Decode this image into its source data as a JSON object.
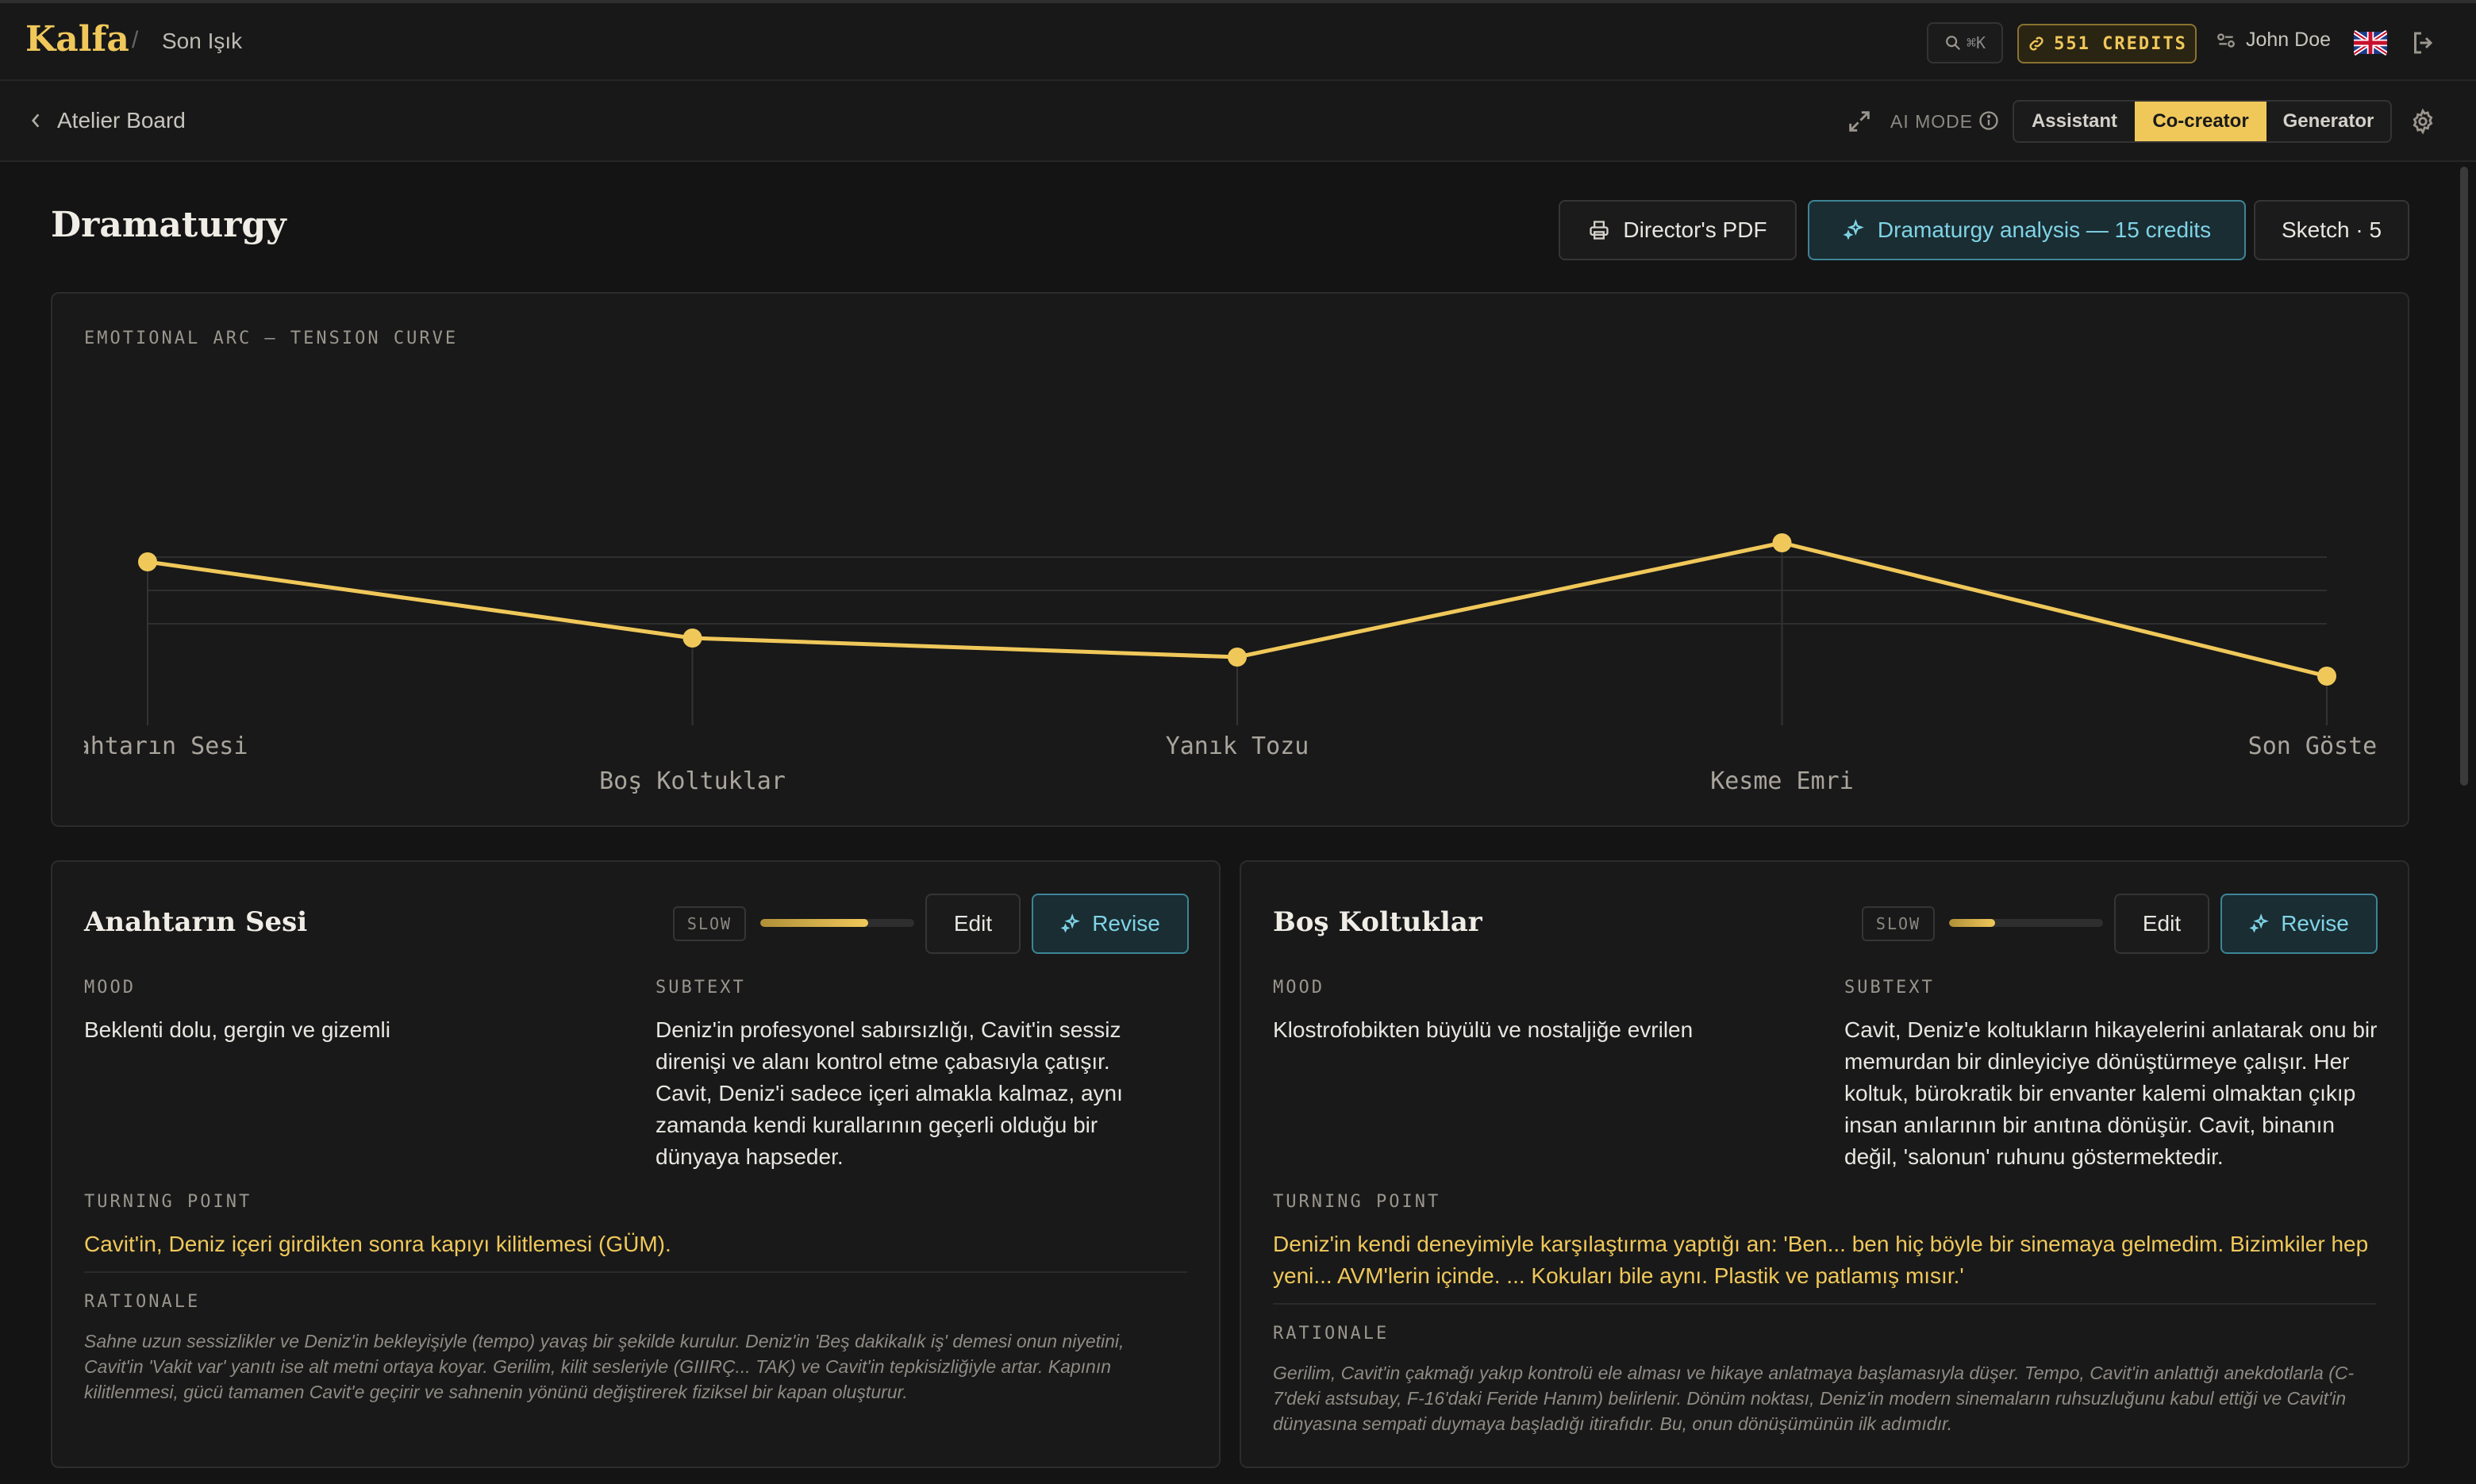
{
  "app": {
    "brand": "Kalfa",
    "separator": "/",
    "project": "Son Işık"
  },
  "topbar": {
    "search_shortcut": "⌘K",
    "credits": "551 CREDITS",
    "user_name": "John Doe",
    "language_flag": "uk-flag-icon"
  },
  "subbar": {
    "back_label": "Atelier Board",
    "ai_mode_label": "AI MODE",
    "modes": [
      "Assistant",
      "Co-creator",
      "Generator"
    ],
    "active_mode": "Co-creator"
  },
  "page": {
    "title": "Dramaturgy",
    "pdf_button": "Director's PDF",
    "analysis_button": "Dramaturgy analysis — 15 credits",
    "sketch_button": "Sketch · 5"
  },
  "colors": {
    "accent": "#f0c85a",
    "teal": "#7fd4e6",
    "background": "#141414"
  },
  "chart_data": {
    "type": "line",
    "title": "EMOTIONAL ARC — TENSION CURVE",
    "categories": [
      "Anahtarın Sesi",
      "Boş Koltuklar",
      "Yanık Tozu",
      "Kesme Emri",
      "Son Gösteri"
    ],
    "series": [
      {
        "values": [
          6.9,
          5.3,
          4.9,
          7.3,
          4.5
        ]
      }
    ],
    "ylim": [
      0,
      10
    ],
    "grid": true,
    "xlabel": "",
    "ylabel": ""
  },
  "scenes": [
    {
      "title": "Anahtarın Sesi",
      "pace": "SLOW",
      "pace_level": 0.7,
      "edit_label": "Edit",
      "revise_label": "Revise",
      "mood_label": "MOOD",
      "mood": "Beklenti dolu, gergin ve gizemli",
      "subtext_label": "SUBTEXT",
      "subtext": "Deniz'in profesyonel sabırsızlığı, Cavit'in sessiz direnişi ve alanı kontrol etme çabasıyla çatışır. Cavit, Deniz'i sadece içeri almakla kalmaz, aynı zamanda kendi kurallarının geçerli olduğu bir dünyaya hapseder.",
      "turning_label": "TURNING POINT",
      "turning": "Cavit'in, Deniz içeri girdikten sonra kapıyı kilitlemesi (GÜM).",
      "rationale_label": "RATIONALE",
      "rationale": "Sahne uzun sessizlikler ve Deniz'in bekleyişiyle (tempo) yavaş bir şekilde kurulur. Deniz'in 'Beş dakikalık iş' demesi onun niyetini, Cavit'in 'Vakit var' yanıtı ise alt metni ortaya koyar. Gerilim, kilit sesleriyle (GIIIRÇ... TAK) ve Cavit'in tepkisizliğiyle artar. Kapının kilitlenmesi, gücü tamamen Cavit'e geçirir ve sahnenin yönünü değiştirerek fiziksel bir kapan oluşturur."
    },
    {
      "title": "Boş Koltuklar",
      "pace": "SLOW",
      "pace_level": 0.3,
      "edit_label": "Edit",
      "revise_label": "Revise",
      "mood_label": "MOOD",
      "mood": "Klostrofobikten büyülü ve nostaljiğe evrilen",
      "subtext_label": "SUBTEXT",
      "subtext": "Cavit, Deniz'e koltukların hikayelerini anlatarak onu bir memurdan bir dinleyiciye dönüştürmeye çalışır. Her koltuk, bürokratik bir envanter kalemi olmaktan çıkıp insan anılarının bir anıtına dönüşür. Cavit, binanın değil, 'salonun' ruhunu göstermektedir.",
      "turning_label": "TURNING POINT",
      "turning": "Deniz'in kendi deneyimiyle karşılaştırma yaptığı an: 'Ben... ben hiç böyle bir sinemaya gelmedim. Bizimkiler hep yeni... AVM'lerin içinde. ... Kokuları bile aynı. Plastik ve patlamış mısır.'",
      "rationale_label": "RATIONALE",
      "rationale": "Gerilim, Cavit'in çakmağı yakıp kontrolü ele alması ve hikaye anlatmaya başlamasıyla düşer. Tempo, Cavit'in anlattığı anekdotlarla (C-7'deki astsubay, F-16'daki Feride Hanım) belirlenir. Dönüm noktası, Deniz'in modern sinemaların ruhsuzluğunu kabul ettiği ve Cavit'in dünyasına sempati duymaya başladığı itirafıdır. Bu, onun dönüşümünün ilk adımıdır."
    }
  ]
}
